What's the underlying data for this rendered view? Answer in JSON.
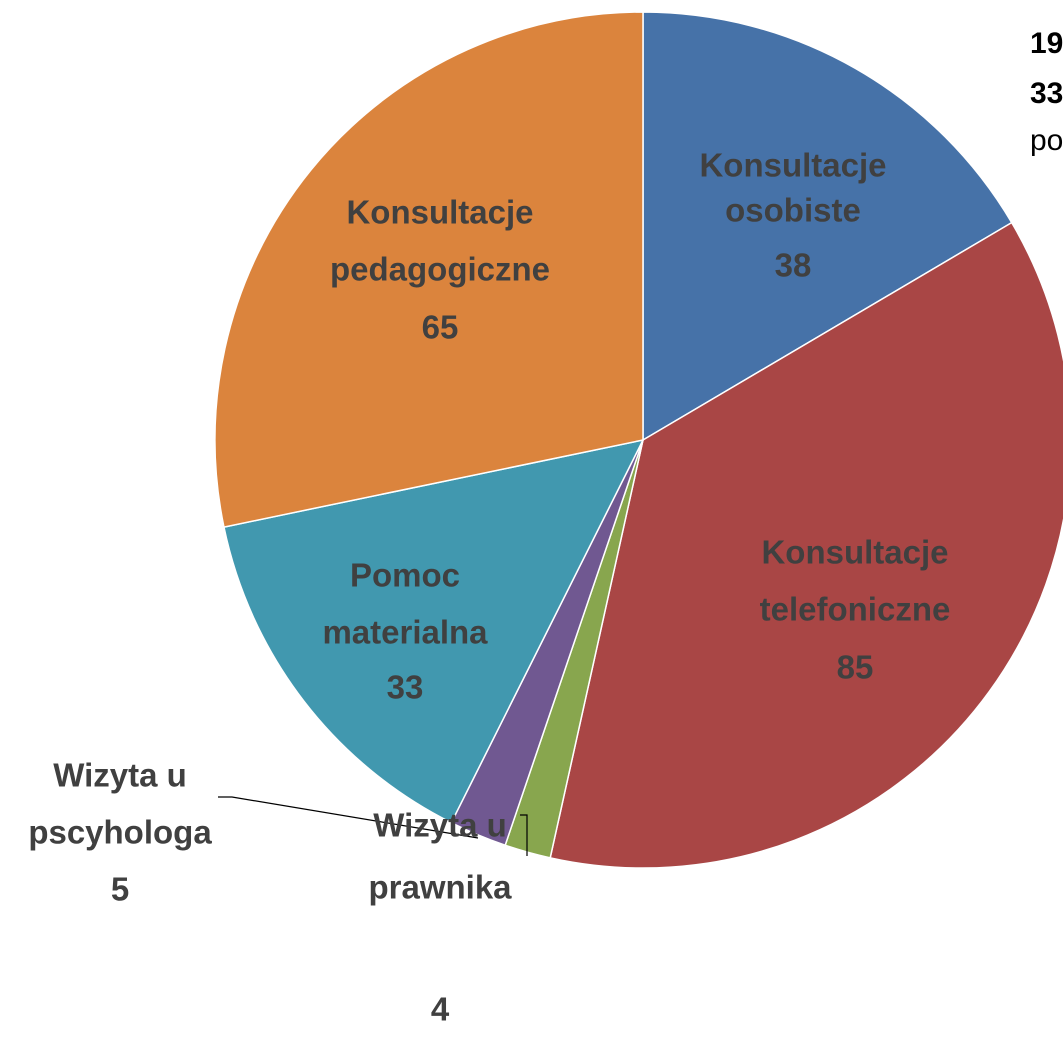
{
  "chart_data": {
    "type": "pie",
    "categories": [
      [
        "Konsultacje",
        "osobiste"
      ],
      [
        "Konsultacje",
        "telefoniczne"
      ],
      [
        "Wizyta u",
        "prawnika"
      ],
      [
        "Wizyta u",
        "pscyhologa"
      ],
      [
        "Pomoc",
        "materialna"
      ],
      [
        "Konsultacje",
        "pedagogiczne"
      ]
    ],
    "values": [
      38,
      85,
      4,
      5,
      33,
      65
    ],
    "colors": [
      "#4672a8",
      "#a94645",
      "#88a64e",
      "#705891",
      "#4198af",
      "#db843d"
    ],
    "annotations": [
      "19",
      "33",
      "po"
    ]
  }
}
